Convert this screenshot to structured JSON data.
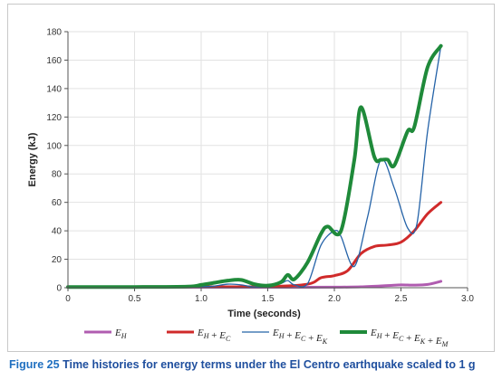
{
  "caption": {
    "label": "Figure 25",
    "text": "Time histories for energy terms under the El Centro earthquake scaled to 1 g"
  },
  "chart_data": {
    "type": "line",
    "xlabel": "Time (seconds)",
    "ylabel": "Energy (kJ)",
    "xlim": [
      0,
      3.0
    ],
    "ylim": [
      0,
      180
    ],
    "x_ticks": [
      "0",
      "0.5",
      "1.0",
      "1.5",
      "2.0",
      "2.5",
      "3.0"
    ],
    "x_tick_values": [
      0,
      0.5,
      1.0,
      1.5,
      2.0,
      2.5,
      3.0
    ],
    "y_ticks": [
      "0",
      "20",
      "40",
      "60",
      "80",
      "100",
      "120",
      "140",
      "160",
      "180"
    ],
    "y_tick_values": [
      0,
      20,
      40,
      60,
      80,
      100,
      120,
      140,
      160,
      180
    ],
    "grid": true,
    "legend_position": "bottom",
    "series": [
      {
        "name": "E_H",
        "legend": {
          "base": "E",
          "sub": "H",
          "parts": []
        },
        "color": "#b05cb0",
        "stroke_width": 3,
        "x": [
          0,
          0.5,
          1.0,
          1.5,
          2.0,
          2.2,
          2.4,
          2.5,
          2.6,
          2.7,
          2.8
        ],
        "y": [
          0.3,
          0.3,
          0.3,
          0.3,
          0.4,
          0.6,
          1.5,
          2.0,
          1.8,
          2.3,
          4.5
        ]
      },
      {
        "name": "E_H + E_C",
        "legend": {
          "base": "E",
          "sub": "H",
          "parts": [
            "C"
          ]
        },
        "color": "#d02a2a",
        "stroke_width": 3,
        "x": [
          0,
          0.5,
          1.0,
          1.5,
          1.8,
          1.9,
          2.0,
          2.1,
          2.2,
          2.3,
          2.4,
          2.5,
          2.6,
          2.7,
          2.8
        ],
        "y": [
          0.5,
          0.5,
          0.6,
          0.8,
          2.5,
          7.0,
          8.5,
          12.0,
          24.0,
          29.0,
          30.0,
          32.0,
          40.0,
          52.0,
          60.0
        ]
      },
      {
        "name": "E_H + E_C + E_K",
        "legend": {
          "base": "E",
          "sub": "H",
          "parts": [
            "C",
            "K"
          ]
        },
        "color": "#2563a8",
        "stroke_width": 1.3,
        "x": [
          0,
          0.5,
          1.0,
          1.1,
          1.2,
          1.3,
          1.4,
          1.5,
          1.6,
          1.65,
          1.7,
          1.8,
          1.9,
          2.0,
          2.05,
          2.15,
          2.25,
          2.35,
          2.45,
          2.55,
          2.62,
          2.7,
          2.8
        ],
        "y": [
          0.5,
          0.5,
          0.8,
          1.2,
          2.5,
          2.0,
          0.5,
          0.5,
          3.0,
          5.0,
          2.0,
          3.0,
          30.0,
          40.0,
          36.0,
          15.0,
          50.0,
          90.0,
          70.0,
          42.0,
          45.0,
          110.0,
          170.0
        ]
      },
      {
        "name": "E_H + E_C + E_K + E_M",
        "legend": {
          "base": "E",
          "sub": "H",
          "parts": [
            "C",
            "K",
            "M"
          ]
        },
        "color": "#1f8a3a",
        "stroke_width": 4,
        "x": [
          0,
          0.5,
          0.9,
          1.0,
          1.1,
          1.2,
          1.3,
          1.4,
          1.5,
          1.6,
          1.65,
          1.7,
          1.8,
          1.9,
          1.95,
          2.05,
          2.15,
          2.2,
          2.3,
          2.35,
          2.4,
          2.45,
          2.55,
          2.6,
          2.7,
          2.8
        ],
        "y": [
          0.5,
          0.5,
          0.8,
          2.0,
          3.5,
          5.0,
          5.5,
          2.5,
          1.5,
          4.0,
          9.0,
          6.0,
          18.0,
          38.0,
          43.0,
          40.0,
          90.0,
          127.0,
          92.0,
          90.0,
          90.0,
          86.0,
          110.0,
          113.0,
          155.0,
          170.0
        ]
      }
    ]
  }
}
